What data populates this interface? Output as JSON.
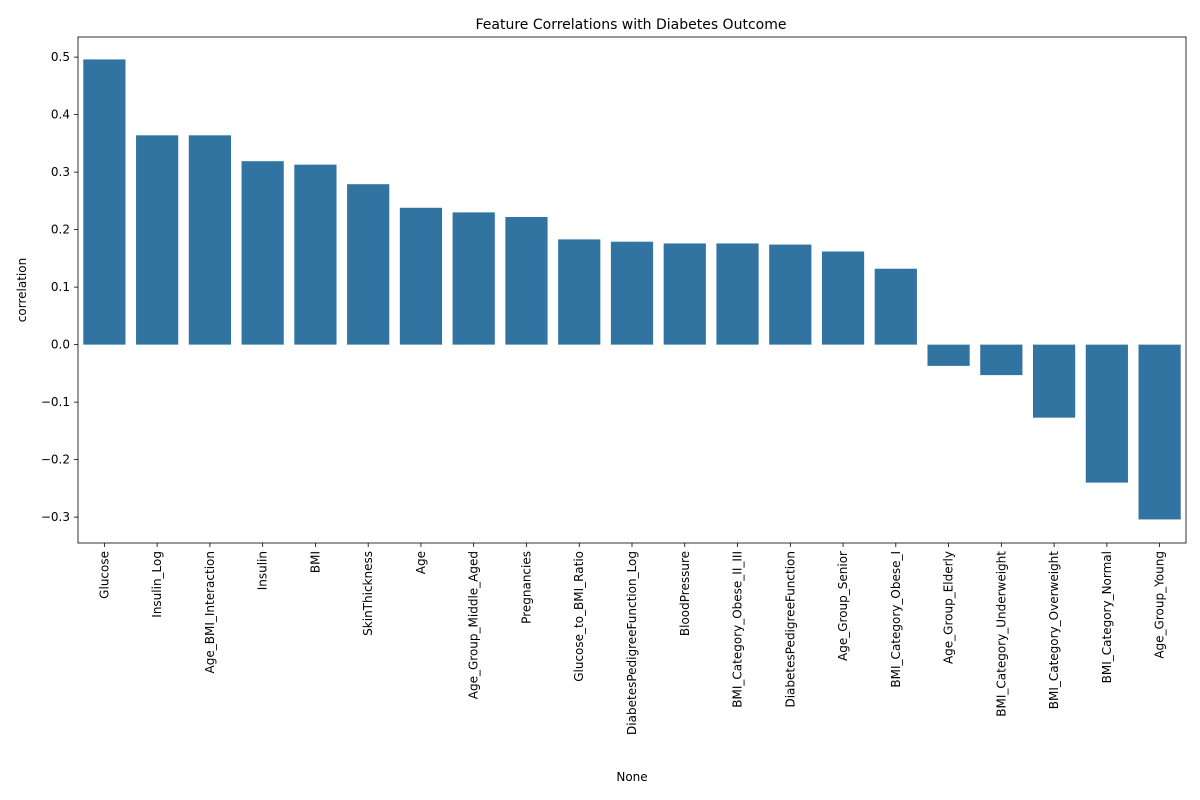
{
  "chart_data": {
    "type": "bar",
    "title": "Feature Correlations with Diabetes Outcome",
    "xlabel": "None",
    "ylabel": "correlation",
    "ylim": [
      -0.345,
      0.535
    ],
    "yticks": [
      0.5,
      0.4,
      0.3,
      0.2,
      0.1,
      0.0,
      -0.1,
      -0.2,
      -0.3
    ],
    "ytick_labels": [
      "0.5",
      "0.4",
      "0.3",
      "0.2",
      "0.1",
      "0.0",
      "−0.1",
      "−0.2",
      "−0.3"
    ],
    "grid": false,
    "bar_color": "#3274a1",
    "categories": [
      "Glucose",
      "Insulin_Log",
      "Age_BMI_Interaction",
      "Insulin",
      "BMI",
      "SkinThickness",
      "Age",
      "Age_Group_Middle_Aged",
      "Pregnancies",
      "Glucose_to_BMI_Ratio",
      "DiabetesPedigreeFunction_Log",
      "BloodPressure",
      "BMI_Category_Obese_II_III",
      "DiabetesPedigreeFunction",
      "Age_Group_Senior",
      "BMI_Category_Obese_I",
      "Age_Group_Elderly",
      "BMI_Category_Underweight",
      "BMI_Category_Overweight",
      "BMI_Category_Normal",
      "Age_Group_Young"
    ],
    "values": [
      0.496,
      0.364,
      0.364,
      0.319,
      0.313,
      0.279,
      0.238,
      0.23,
      0.222,
      0.183,
      0.179,
      0.176,
      0.176,
      0.174,
      0.162,
      0.132,
      -0.037,
      -0.053,
      -0.127,
      -0.24,
      -0.304
    ]
  }
}
